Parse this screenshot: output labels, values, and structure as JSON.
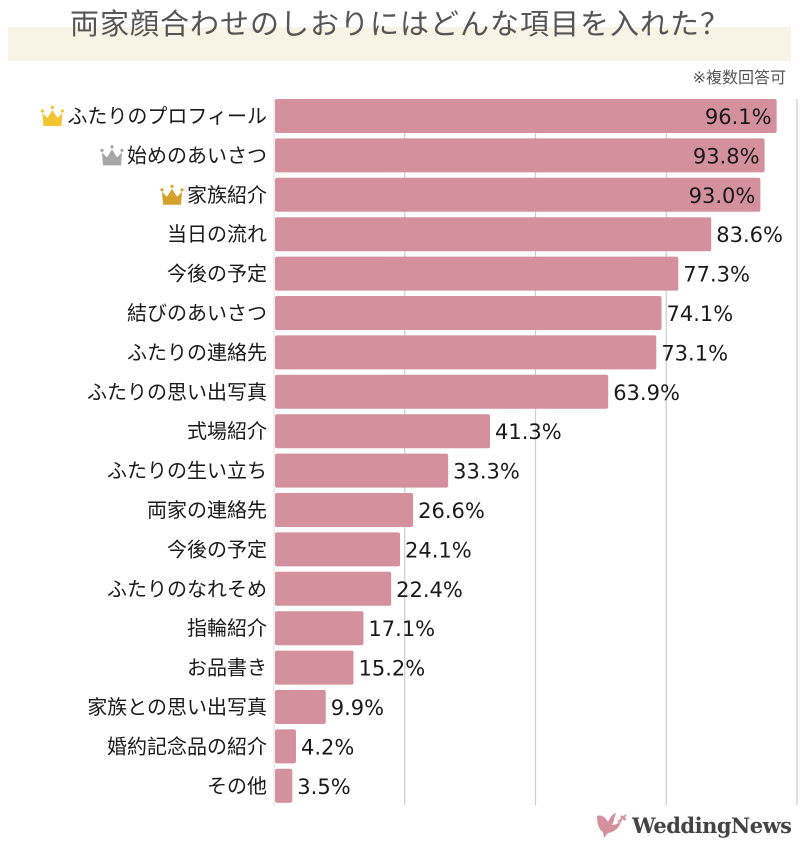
{
  "header": {
    "title": "両家顔合わせのしおりにはどんな項目を入れた？",
    "note": "※複数回答可"
  },
  "brand": {
    "name": "WeddingNews",
    "icon": "dove-icon"
  },
  "colors": {
    "bar": "#d4909c",
    "grid": "#cccccc",
    "title_band": "#f7f4e6",
    "crown_gold": "#f5c531",
    "crown_silver": "#a6a6a6",
    "crown_bronze": "#d4a22a"
  },
  "chart_data": {
    "type": "bar",
    "orientation": "horizontal",
    "title": "両家顔合わせのしおりにはどんな項目を入れた？",
    "subtitle": "※複数回答可",
    "xlabel": "",
    "ylabel": "",
    "xlim": [
      0,
      100
    ],
    "grid": true,
    "grid_values": [
      25,
      50,
      75,
      100
    ],
    "unit": "%",
    "categories": [
      "ふたりのプロフィール",
      "始めのあいさつ",
      "家族紹介",
      "当日の流れ",
      "今後の予定",
      "結びのあいさつ",
      "ふたりの連絡先",
      "ふたりの思い出写真",
      "式場紹介",
      "ふたりの生い立ち",
      "両家の連絡先",
      "今後の予定",
      "ふたりのなれそめ",
      "指輪紹介",
      "お品書き",
      "家族との思い出写真",
      "婚約記念品の紹介",
      "その他"
    ],
    "values": [
      96.1,
      93.8,
      93.0,
      83.6,
      77.3,
      74.1,
      73.1,
      63.9,
      41.3,
      33.3,
      26.6,
      24.1,
      22.4,
      17.1,
      15.2,
      9.9,
      4.2,
      3.5
    ],
    "value_labels": [
      "96.1%",
      "93.8%",
      "93.0%",
      "83.6%",
      "77.3%",
      "74.1%",
      "73.1%",
      "63.9%",
      "41.3%",
      "33.3%",
      "26.6%",
      "24.1%",
      "22.4%",
      "17.1%",
      "15.2%",
      "9.9%",
      "4.2%",
      "3.5%"
    ],
    "rank_icons": [
      "crown-gold-icon",
      "crown-silver-icon",
      "crown-bronze-icon"
    ],
    "labels_inside_top_n": 3
  }
}
